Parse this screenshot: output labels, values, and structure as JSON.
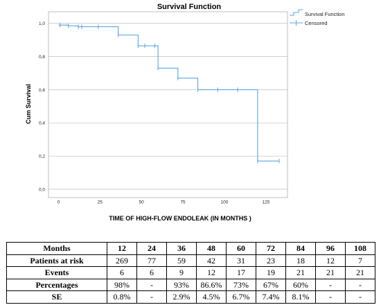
{
  "chart_data": {
    "type": "line",
    "title": "Survival Function",
    "xlabel": "TIME OF HIGH-FLOW ENDOLEAK (IN MONTHS )",
    "ylabel": "Cum Survival",
    "xlim": [
      -6,
      138
    ],
    "ylim": [
      -0.05,
      1.07
    ],
    "x_ticks": [
      0,
      25,
      50,
      75,
      100,
      125
    ],
    "x_tick_labels": [
      "0",
      "25",
      "50",
      "75",
      "100",
      "125"
    ],
    "y_ticks": [
      0.0,
      0.2,
      0.4,
      0.6,
      0.8,
      1.0
    ],
    "y_tick_labels": [
      "0,0",
      "0,2",
      "0,4",
      "0,6",
      "0,8",
      "1,0"
    ],
    "grid": "horizontal",
    "legend_position": "top-right",
    "series": [
      {
        "name": "Survival Function",
        "color": "#5aa5e6",
        "step_points": [
          [
            0,
            0.99
          ],
          [
            6,
            0.985
          ],
          [
            12,
            0.98
          ],
          [
            36,
            0.93
          ],
          [
            48,
            0.865
          ],
          [
            60,
            0.73
          ],
          [
            72,
            0.67
          ],
          [
            84,
            0.6
          ],
          [
            120,
            0.17
          ],
          [
            133,
            0.17
          ]
        ]
      },
      {
        "name": "Censored",
        "color": "#5aa5e6",
        "points": [
          [
            1,
            0.99
          ],
          [
            6,
            0.985
          ],
          [
            12,
            0.98
          ],
          [
            14,
            0.98
          ],
          [
            24,
            0.98
          ],
          [
            36,
            0.93
          ],
          [
            48,
            0.865
          ],
          [
            52,
            0.865
          ],
          [
            58,
            0.865
          ],
          [
            60,
            0.73
          ],
          [
            72,
            0.67
          ],
          [
            84,
            0.6
          ],
          [
            96,
            0.6
          ],
          [
            108,
            0.6
          ],
          [
            120,
            0.17
          ],
          [
            133,
            0.17
          ]
        ]
      }
    ]
  },
  "risk_table": {
    "header": [
      "Months",
      "12",
      "24",
      "36",
      "48",
      "60",
      "72",
      "84",
      "96",
      "108"
    ],
    "rows": [
      [
        "Patients at risk",
        "269",
        "77",
        "59",
        "42",
        "31",
        "23",
        "18",
        "12",
        "7"
      ],
      [
        "Events",
        "6",
        "6",
        "9",
        "12",
        "17",
        "19",
        "21",
        "21",
        "21"
      ],
      [
        "Percentages",
        "98%",
        "-",
        "93%",
        "86.6%",
        "73%",
        "67%",
        "60%",
        "-",
        "-"
      ],
      [
        "SE",
        "0.8%",
        "-",
        "2.9%",
        "4.5%",
        "6.7%",
        "7.4%",
        "8.1%",
        "-",
        "-"
      ]
    ]
  }
}
